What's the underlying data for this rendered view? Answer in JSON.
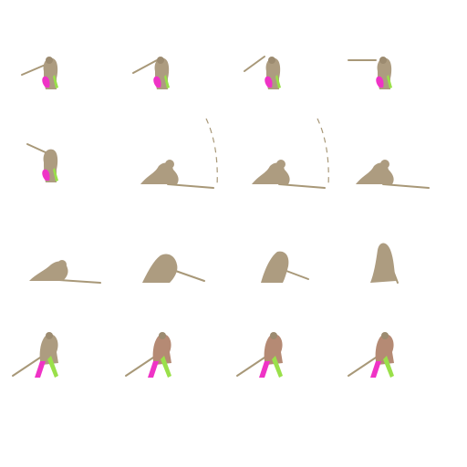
{
  "sprite_sheet": {
    "grid": {
      "columns": 4,
      "rows": 4
    },
    "colors": {
      "background": "#ffffff",
      "body": "#ad9c80",
      "body_dark": "#9c8b70",
      "skin": "#b58a74",
      "limb_magenta": "#ef33c6",
      "limb_green": "#9ae04a",
      "weapon": "#a89878"
    },
    "rows": [
      {
        "pose": "standing-aim",
        "frames": 4
      },
      {
        "pose": "hit-fall",
        "frames": 4
      },
      {
        "pose": "get-up",
        "frames": 4
      },
      {
        "pose": "standing-rod-down",
        "frames": 4
      }
    ]
  }
}
